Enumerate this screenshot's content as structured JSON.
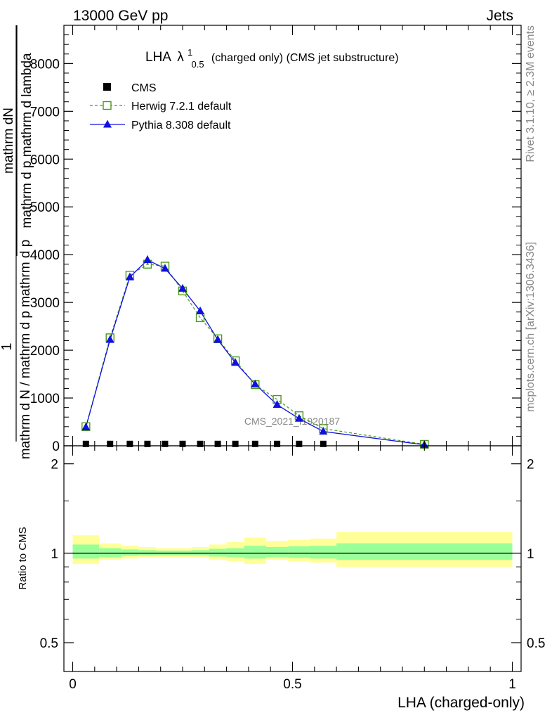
{
  "header": {
    "left": "13000 GeV pp",
    "right": "Jets"
  },
  "side_text": {
    "rivet": "Rivet 3.1.10, ≥ 2.3M events",
    "mcplots": "mcplots.cern.ch [arXiv:1306.3436]"
  },
  "watermark": "CMS_2021_I1920187",
  "chart_data": [
    {
      "type": "line",
      "title": "LHA",
      "title_symbol": "λ",
      "title_sup": "1",
      "title_sub": "0.5",
      "title_suffix": "(charged only) (CMS jet substructure)",
      "ylabel_numerator": "mathrm dN",
      "ylabel_denominator": "mathrm d p mathrm d lambda",
      "ylabel_left_numerator": "1",
      "ylabel_left_denominator": "mathrm d N / mathrm d p mathrm d p",
      "ylim": [
        0,
        8800
      ],
      "xlim": [
        -0.02,
        1.02
      ],
      "y_ticks": [
        0,
        1000,
        2000,
        3000,
        4000,
        5000,
        6000,
        7000,
        8000
      ],
      "y_tick_labels": [
        "0",
        "1000",
        "2000",
        "3000",
        "4000",
        "5000",
        "6000",
        "7000",
        "8000"
      ],
      "series": [
        {
          "name": "CMS",
          "style": "marker-square",
          "color": "#000000",
          "x": [
            0.03,
            0.085,
            0.13,
            0.17,
            0.21,
            0.25,
            0.29,
            0.33,
            0.37,
            0.415,
            0.465,
            0.515,
            0.57
          ],
          "y": [
            10,
            10,
            10,
            10,
            10,
            10,
            10,
            10,
            10,
            10,
            10,
            10,
            10
          ]
        },
        {
          "name": "Herwig 7.2.1 default",
          "style": "dashed-open-square",
          "color": "#4a9a1a",
          "x": [
            0.03,
            0.085,
            0.13,
            0.17,
            0.21,
            0.25,
            0.29,
            0.33,
            0.37,
            0.415,
            0.465,
            0.515,
            0.57,
            0.8
          ],
          "y": [
            400,
            2260,
            3570,
            3800,
            3760,
            3240,
            2680,
            2240,
            1780,
            1280,
            970,
            630,
            360,
            30
          ]
        },
        {
          "name": "Pythia 8.308 default",
          "style": "solid-filled-triangle",
          "color": "#1010e0",
          "x": [
            0.03,
            0.085,
            0.13,
            0.17,
            0.21,
            0.25,
            0.29,
            0.33,
            0.37,
            0.415,
            0.465,
            0.515,
            0.57,
            0.8
          ],
          "y": [
            390,
            2220,
            3530,
            3890,
            3710,
            3290,
            2820,
            2220,
            1740,
            1290,
            860,
            570,
            300,
            20
          ]
        }
      ]
    },
    {
      "type": "area",
      "ylabel": "Ratio to CMS",
      "xlabel": "LHA (charged-only)",
      "xlim": [
        -0.02,
        1.02
      ],
      "ylim": [
        0.4,
        2.3
      ],
      "y_scale": "log",
      "y_ticks": [
        0.5,
        1,
        2
      ],
      "y_tick_labels": [
        "0.5",
        "1",
        "2"
      ],
      "x_ticks": [
        0,
        0.5,
        1
      ],
      "x_tick_labels": [
        "0",
        "0.5",
        "1"
      ],
      "bin_edges": [
        0.0,
        0.06,
        0.11,
        0.15,
        0.19,
        0.23,
        0.27,
        0.31,
        0.35,
        0.39,
        0.44,
        0.49,
        0.54,
        0.6,
        1.0
      ],
      "band_2sigma_lo": [
        0.92,
        0.95,
        0.96,
        0.97,
        0.97,
        0.97,
        0.97,
        0.95,
        0.94,
        0.92,
        0.95,
        0.94,
        0.93,
        0.9
      ],
      "band_2sigma_hi": [
        1.15,
        1.08,
        1.06,
        1.05,
        1.04,
        1.04,
        1.05,
        1.07,
        1.09,
        1.13,
        1.1,
        1.11,
        1.12,
        1.18
      ],
      "band_1sigma_lo": [
        0.96,
        0.97,
        0.98,
        0.985,
        0.985,
        0.985,
        0.985,
        0.975,
        0.97,
        0.96,
        0.97,
        0.965,
        0.96,
        0.95
      ],
      "band_1sigma_hi": [
        1.07,
        1.04,
        1.03,
        1.025,
        1.02,
        1.02,
        1.025,
        1.035,
        1.04,
        1.06,
        1.05,
        1.055,
        1.06,
        1.08
      ],
      "colors": {
        "band_2sigma": "#ffff99",
        "band_1sigma": "#99ff99"
      }
    }
  ]
}
